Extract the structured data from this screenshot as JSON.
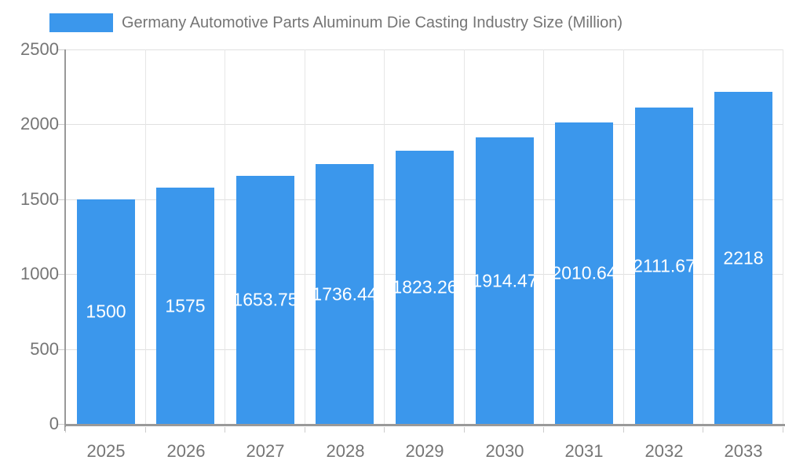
{
  "legend": {
    "label": "Germany Automotive Parts Aluminum Die Casting Industry Size (Million)"
  },
  "colors": {
    "bar": "#3b97ec",
    "axis_line": "#999999",
    "gridline_h": "#e0e0e0",
    "gridline_v": "#e6e6e6",
    "tick": "#cccccc",
    "axis_text": "#757575",
    "bar_label_text": "#ffffff",
    "background": "#ffffff"
  },
  "chart_data": {
    "type": "bar",
    "title": "Germany Automotive Parts Aluminum Die Casting Industry Size (Million)",
    "categories": [
      "2025",
      "2026",
      "2027",
      "2028",
      "2029",
      "2030",
      "2031",
      "2032",
      "2033"
    ],
    "values": [
      1500,
      1575,
      1653.75,
      1736.44,
      1823.26,
      1914.47,
      2010.64,
      2111.67,
      2218
    ],
    "value_labels": [
      "1500",
      "1575",
      "1653.75",
      "1736.44",
      "1823.26",
      "1914.47",
      "2010.64",
      "2111.67",
      "2218"
    ],
    "xlabel": "",
    "ylabel": "",
    "ylim": [
      0,
      2500
    ],
    "yticks": [
      0,
      500,
      1000,
      1500,
      2000,
      2500
    ],
    "ytick_labels": [
      "0",
      "500",
      "1000",
      "1500",
      "2000",
      "2500"
    ],
    "grid": true,
    "legend_position": "top-left",
    "bar_label_position": "center"
  }
}
